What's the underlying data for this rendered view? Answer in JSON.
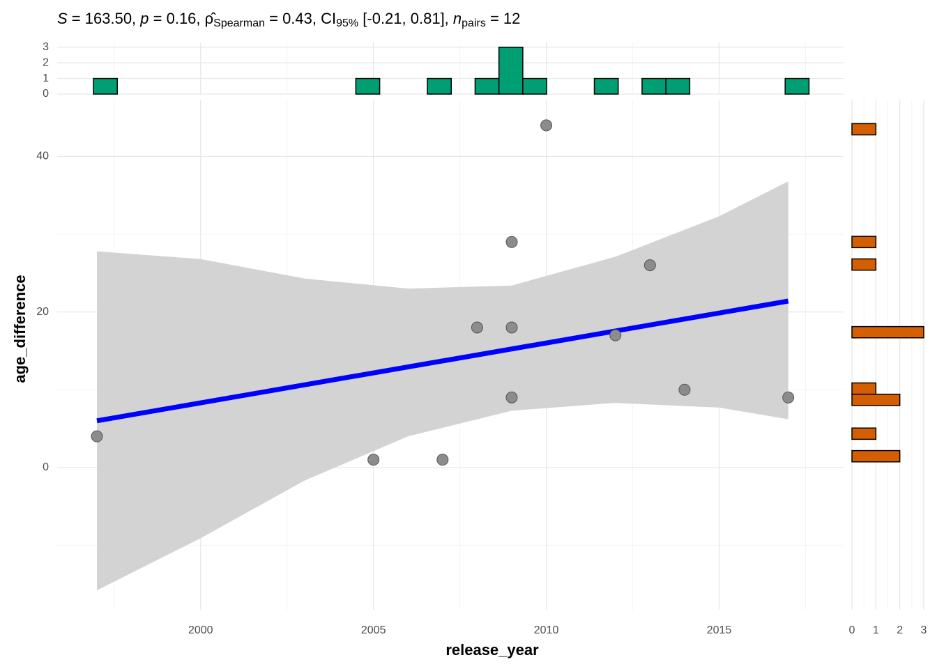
{
  "chart_data": [
    {
      "type": "scatter",
      "title": [
        "S",
        " = 163.50, ",
        "p",
        " = 0.16, ",
        "ρ̂",
        "Spearman",
        " = 0.43, CI",
        "95%",
        " [-0.21, 0.81], ",
        "n",
        "pairs",
        " = 12"
      ],
      "xlabel": "release_year",
      "ylabel": "age_difference",
      "x": [
        1997,
        2005,
        2007,
        2008,
        2009,
        2009,
        2009,
        2010,
        2012,
        2013,
        2014,
        2017
      ],
      "values": [
        4,
        1,
        1,
        18,
        29,
        18,
        9,
        44,
        17,
        26,
        10,
        9
      ],
      "color": "#8c8c8c",
      "fit": {
        "color": "#0000ff",
        "x": [
          1997,
          2017
        ],
        "values": [
          6.0,
          21.4
        ]
      },
      "band": {
        "color": "#d3d3d3",
        "x": [
          1997,
          2000,
          2003,
          2006,
          2009,
          2012,
          2015,
          2017
        ],
        "upper": [
          27.8,
          26.8,
          24.3,
          23.0,
          23.4,
          27.1,
          32.3,
          36.8
        ],
        "lower": [
          -15.8,
          -9.1,
          -1.7,
          4.0,
          7.3,
          8.3,
          7.7,
          6.2
        ]
      },
      "xlim": [
        1995.85,
        2018.6
      ],
      "ylim": [
        -18.3,
        47.3
      ],
      "xticks": [
        2000,
        2005,
        2010,
        2015
      ],
      "yticks": [
        0,
        20,
        40
      ],
      "xminor": [
        1997.5,
        2002.5,
        2007.5,
        2012.5,
        2017.5
      ],
      "yminor": [
        -10,
        10,
        30
      ],
      "grid": true
    },
    {
      "type": "histogram",
      "orientation": "vertical",
      "color": "#009E73",
      "bins": [
        1996.9,
        1997.59,
        1998.28,
        1998.97,
        1999.66,
        2000.35,
        2001.04,
        2001.73,
        2002.42,
        2003.11,
        2003.8,
        2004.49,
        2005.18,
        2005.87,
        2006.56,
        2007.25,
        2007.94,
        2008.63,
        2009.32,
        2010.01,
        2010.7,
        2011.39,
        2012.08,
        2012.77,
        2013.46,
        2014.15,
        2014.84,
        2015.53,
        2016.22,
        2016.91,
        2017.6
      ],
      "counts": [
        1,
        0,
        0,
        0,
        0,
        0,
        0,
        0,
        0,
        0,
        0,
        1,
        0,
        0,
        1,
        0,
        1,
        3,
        1,
        0,
        0,
        1,
        0,
        1,
        1,
        0,
        0,
        0,
        0,
        1
      ],
      "xlim": [
        1995.85,
        2018.6
      ],
      "ylim": [
        0,
        3.1
      ],
      "yticks": [
        0,
        1,
        2,
        3
      ],
      "grid": true
    },
    {
      "type": "histogram",
      "orientation": "horizontal",
      "color": "#D55E00",
      "bins": [
        0.72,
        2.17,
        3.62,
        5.07,
        6.52,
        7.97,
        9.42,
        10.87,
        12.32,
        13.77,
        15.22,
        16.67,
        18.12,
        19.57,
        21.02,
        22.47,
        23.92,
        25.37,
        26.82,
        28.27,
        29.72,
        31.17,
        32.62,
        34.07,
        35.52,
        36.97,
        38.42,
        39.87,
        41.32,
        42.77,
        44.22
      ],
      "counts": [
        2,
        0,
        1,
        0,
        0,
        2,
        1,
        0,
        0,
        0,
        0,
        3,
        0,
        0,
        0,
        0,
        0,
        1,
        0,
        1,
        0,
        0,
        0,
        0,
        0,
        0,
        0,
        0,
        0,
        1
      ],
      "xlim": [
        0,
        3.05
      ],
      "ylim": [
        -18.3,
        47.3
      ],
      "xticks": [
        0,
        1,
        2,
        3
      ],
      "xminor": [
        0.5,
        1.5,
        2.5
      ],
      "grid": true
    }
  ]
}
